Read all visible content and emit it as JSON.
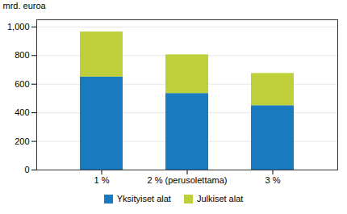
{
  "chart_data": {
    "type": "bar",
    "stacked": true,
    "categories": [
      "1 %",
      "2 % (perusolettama)",
      "3 %"
    ],
    "series": [
      {
        "name": "Yksityiset alat",
        "color": "#1a7abf",
        "values": [
          650,
          535,
          450
        ]
      },
      {
        "name": "Julkiset alat",
        "color": "#bfcf3a",
        "values": [
          315,
          270,
          225
        ]
      }
    ],
    "ylabel": "mrd. euroa",
    "ylim": [
      0,
      1050
    ],
    "yticks": [
      0,
      200,
      400,
      600,
      800,
      1000
    ],
    "grid": true,
    "legend": "bottom"
  }
}
